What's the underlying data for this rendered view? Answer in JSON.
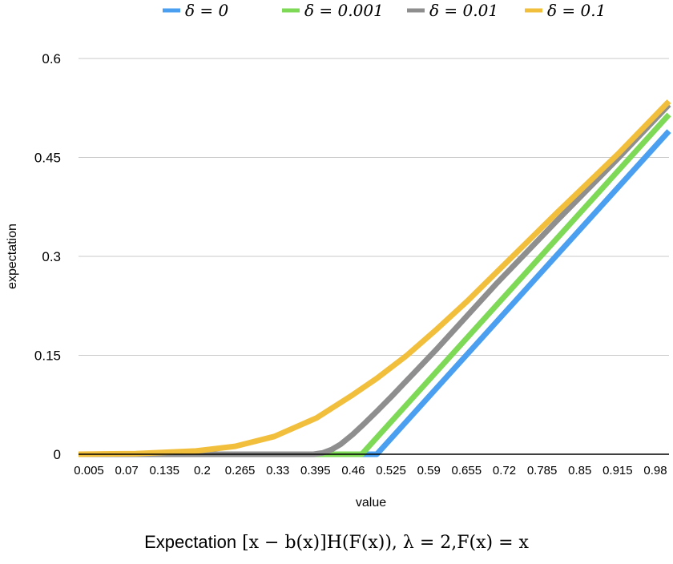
{
  "chart_data": {
    "type": "line",
    "title": "",
    "caption_prefix": "Expectation",
    "caption_math": "[x − b(x)]H(F(x)), λ = 2,F(x) = x",
    "xlabel": "value",
    "ylabel": "expectation",
    "ylim": [
      0,
      0.6
    ],
    "yticks": [
      "0",
      "0.15",
      "0.3",
      "0.45",
      "0.6"
    ],
    "xtick_labels": [
      "0.005",
      "0.07",
      "0.135",
      "0.2",
      "0.265",
      "0.33",
      "0.395",
      "0.46",
      "0.525",
      "0.59",
      "0.655",
      "0.72",
      "0.785",
      "0.85",
      "0.915",
      "0.98"
    ],
    "xlim": [
      0.005,
      0.985
    ],
    "grid": "horizontal",
    "legend_position": "top",
    "series": [
      {
        "name": "δ = 0",
        "color": "#4a9ff0",
        "x": [
          0.005,
          0.5,
          0.985
        ],
        "y": [
          0,
          0,
          0.49
        ]
      },
      {
        "name": "δ = 0.001",
        "color": "#7ed957",
        "x": [
          0.005,
          0.475,
          0.985
        ],
        "y": [
          0,
          0,
          0.515
        ]
      },
      {
        "name": "δ = 0.01",
        "color": "#8e8e8e",
        "x": [
          0.005,
          0.395,
          0.41,
          0.425,
          0.44,
          0.46,
          0.48,
          0.5,
          0.525,
          0.6,
          0.7,
          0.8,
          0.9,
          0.985
        ],
        "y": [
          0,
          0,
          0.002,
          0.007,
          0.015,
          0.03,
          0.047,
          0.065,
          0.088,
          0.16,
          0.26,
          0.355,
          0.448,
          0.53
        ]
      },
      {
        "name": "δ = 0.1",
        "color": "#f2bf3c",
        "x": [
          0.005,
          0.1,
          0.2,
          0.265,
          0.33,
          0.4,
          0.46,
          0.5,
          0.55,
          0.6,
          0.65,
          0.7,
          0.8,
          0.9,
          0.985
        ],
        "y": [
          0,
          0.001,
          0.005,
          0.012,
          0.027,
          0.055,
          0.09,
          0.115,
          0.15,
          0.19,
          0.232,
          0.277,
          0.367,
          0.455,
          0.535
        ]
      }
    ]
  }
}
